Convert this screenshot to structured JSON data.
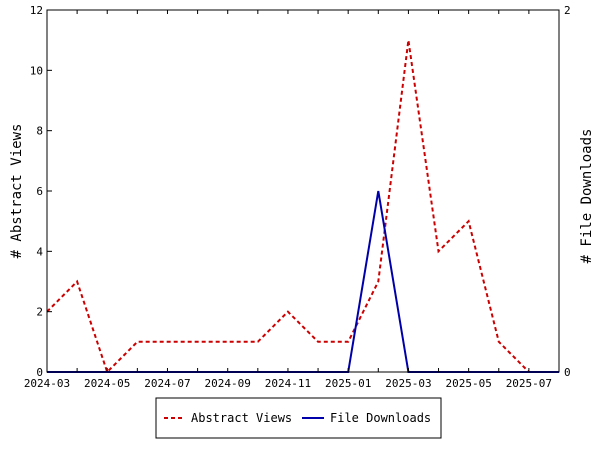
{
  "chart_data": {
    "type": "line",
    "x": [
      "2024-03",
      "2024-04",
      "2024-05",
      "2024-06",
      "2024-07",
      "2024-08",
      "2024-09",
      "2024-10",
      "2024-11",
      "2024-12",
      "2025-01",
      "2025-02",
      "2025-03",
      "2025-04",
      "2025-05",
      "2025-06",
      "2025-07",
      "2025-08"
    ],
    "x_tick_labels": [
      "2024-03",
      "2024-05",
      "2024-07",
      "2024-09",
      "2024-11",
      "2025-01",
      "2025-03",
      "2025-05",
      "2025-07"
    ],
    "series": [
      {
        "name": "Abstract Views",
        "axis": "left",
        "color": "#cc0000",
        "style": "dashed",
        "values": [
          2,
          3,
          0,
          1,
          1,
          1,
          1,
          1,
          2,
          1,
          1,
          3,
          11,
          4,
          5,
          1,
          0,
          0
        ]
      },
      {
        "name": "File Downloads",
        "axis": "right",
        "color": "#0000aa",
        "style": "solid",
        "values": [
          0,
          0,
          0,
          0,
          0,
          0,
          0,
          0,
          0,
          0,
          0,
          1,
          0,
          0,
          0,
          0,
          0,
          0
        ]
      }
    ],
    "ylabel": "# Abstract Views",
    "y2label": "# File Downloads",
    "ylim": [
      0,
      12
    ],
    "y2lim": [
      0,
      2
    ],
    "y_ticks": [
      "0",
      "2",
      "4",
      "6",
      "8",
      "10",
      "12"
    ],
    "y2_ticks": [
      "0",
      "2"
    ],
    "legend_position": "bottom",
    "grid": false
  }
}
